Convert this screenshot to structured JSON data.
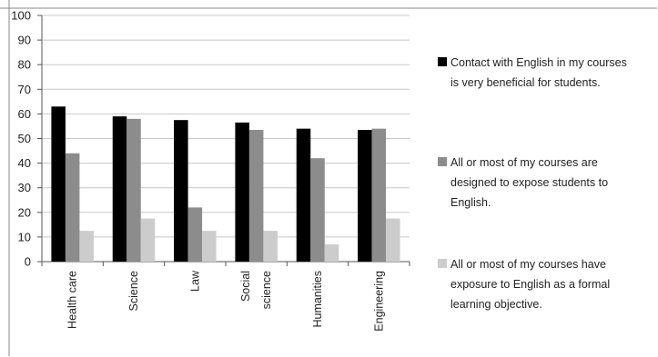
{
  "chart_data": {
    "type": "bar",
    "categories": [
      "Health care",
      "Science",
      "Law",
      "Social science",
      "Humanities",
      "Engineering"
    ],
    "category_label_lines": [
      [
        "Health care"
      ],
      [
        "Science"
      ],
      [
        "Law"
      ],
      [
        "Social",
        "science"
      ],
      [
        "Humanities"
      ],
      [
        "Engineering"
      ]
    ],
    "series": [
      {
        "name": "Contact with English in my courses is very beneficial for students.",
        "name_lines": [
          "Contact with English in my courses",
          "is very beneficial for students."
        ],
        "color": "#000000",
        "values": [
          63,
          59,
          57.5,
          56.5,
          54,
          53.5
        ]
      },
      {
        "name": "All or most of my courses are designed to expose students to English.",
        "name_lines": [
          "All or most of my courses are",
          "designed to expose students to",
          "English."
        ],
        "color": "#8c8c8c",
        "values": [
          44,
          58,
          22,
          53.5,
          42,
          54
        ]
      },
      {
        "name": "All or most of my courses have exposure to English as a formal learning objective.",
        "name_lines": [
          "All or most of my courses have",
          "exposure to English as a formal",
          "learning objective."
        ],
        "color": "#cccccc",
        "values": [
          12.5,
          17.5,
          12.5,
          12.5,
          7,
          17.5
        ]
      }
    ],
    "y_ticks": [
      "0",
      "10",
      "20",
      "30",
      "40",
      "50",
      "60",
      "70",
      "80",
      "90",
      "100"
    ],
    "ylim": [
      0,
      100
    ],
    "grid": true,
    "legend_position": "right"
  }
}
